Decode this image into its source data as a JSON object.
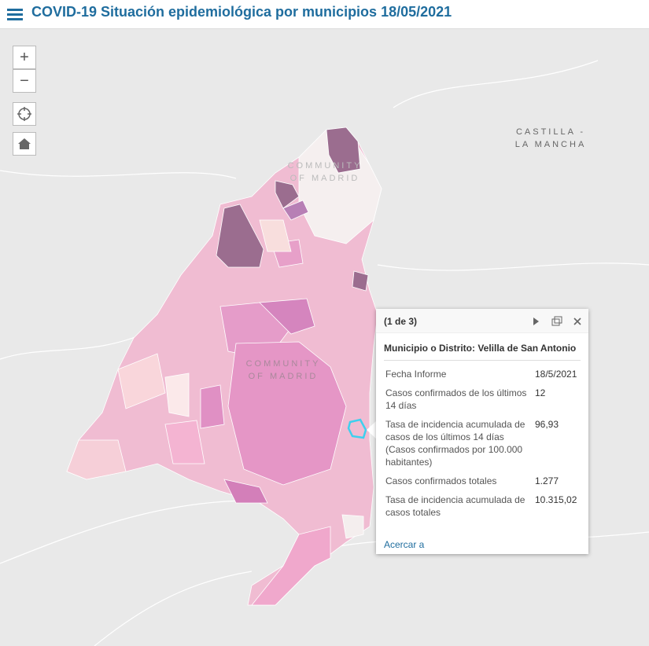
{
  "header": {
    "title": "COVID-19 Situación epidemiológica por municipios 18/05/2021"
  },
  "controls": {
    "zoom_in": "+",
    "zoom_out": "−"
  },
  "map_labels": [
    {
      "lines": [
        "CASTILLA -",
        "LA MANCHA"
      ]
    },
    {
      "lines": [
        "COMMUNITY",
        "OF MADRID"
      ]
    },
    {
      "lines": [
        "COMMUNITY",
        "OF MADRID"
      ]
    }
  ],
  "popup": {
    "pager": "(1 de 3)",
    "title": "Municipio o Distrito: Velilla de San Antonio",
    "rows": [
      [
        "Fecha Informe",
        "18/5/2021"
      ],
      [
        "Casos confirmados de los últimos 14 días",
        "12"
      ],
      [
        "Tasa de incidencia acumulada de casos de los últimos 14 días (Casos confirmados por 100.000 habitantes)",
        "96,93"
      ],
      [
        "Casos confirmados totales",
        "1.277"
      ],
      [
        "Tasa de incidencia acumulada de casos totales",
        "10.315,02"
      ]
    ],
    "action": "Acercar a"
  }
}
